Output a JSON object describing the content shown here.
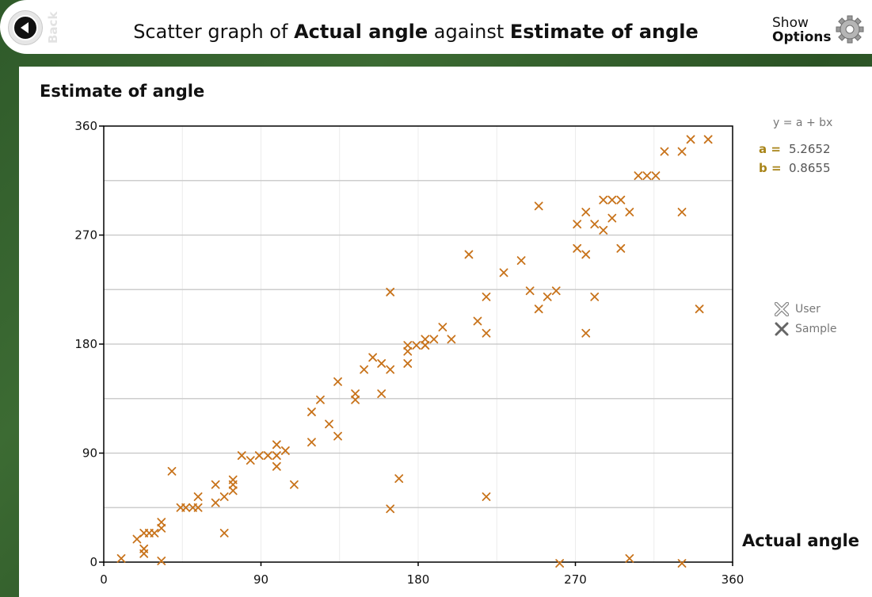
{
  "header": {
    "back_label": "Back",
    "title_prefix": "Scatter graph of ",
    "title_x": "Actual angle",
    "title_mid": " against ",
    "title_y": "Estimate of angle",
    "options_line1": "Show",
    "options_line2": "Options"
  },
  "equation": {
    "label": "y = a + bx",
    "a_label": "a =",
    "a_value": "5.2652",
    "b_label": "b =",
    "b_value": "0.8655"
  },
  "legend": {
    "user": "User",
    "sample": "Sample"
  },
  "colors": {
    "marker": "#c8731b",
    "grid": "#c9c9c9",
    "axis": "#000000"
  },
  "chart_data": {
    "type": "scatter",
    "title": "Scatter graph of Actual angle against Estimate of angle",
    "xlabel": "Actual angle",
    "ylabel": "Estimate of angle",
    "xlim": [
      0,
      360
    ],
    "ylim": [
      0,
      360
    ],
    "xticks": [
      "0",
      "90",
      "180",
      "270",
      "360"
    ],
    "yticks": [
      "0",
      "90",
      "180",
      "270",
      "360"
    ],
    "fit": {
      "a": 5.2652,
      "b": 0.8655
    },
    "series": [
      {
        "name": "Sample",
        "points": [
          [
            10,
            3
          ],
          [
            19,
            19
          ],
          [
            23,
            11
          ],
          [
            23,
            7
          ],
          [
            23,
            24
          ],
          [
            26,
            24
          ],
          [
            29,
            24
          ],
          [
            33,
            28
          ],
          [
            33,
            33
          ],
          [
            33,
            1
          ],
          [
            39,
            75
          ],
          [
            44,
            45
          ],
          [
            47,
            45
          ],
          [
            51,
            45
          ],
          [
            54,
            45
          ],
          [
            54,
            54
          ],
          [
            64,
            49
          ],
          [
            64,
            64
          ],
          [
            69,
            24
          ],
          [
            69,
            54
          ],
          [
            74,
            59
          ],
          [
            74,
            64
          ],
          [
            74,
            68
          ],
          [
            79,
            88
          ],
          [
            84,
            84
          ],
          [
            89,
            88
          ],
          [
            94,
            88
          ],
          [
            99,
            88
          ],
          [
            99,
            97
          ],
          [
            99,
            79
          ],
          [
            104,
            92
          ],
          [
            109,
            64
          ],
          [
            119,
            99
          ],
          [
            119,
            124
          ],
          [
            124,
            134
          ],
          [
            129,
            114
          ],
          [
            134,
            149
          ],
          [
            134,
            104
          ],
          [
            144,
            139
          ],
          [
            144,
            134
          ],
          [
            149,
            159
          ],
          [
            154,
            169
          ],
          [
            159,
            164
          ],
          [
            159,
            139
          ],
          [
            164,
            159
          ],
          [
            164,
            223
          ],
          [
            164,
            44
          ],
          [
            169,
            69
          ],
          [
            174,
            164
          ],
          [
            174,
            179
          ],
          [
            174,
            174
          ],
          [
            179,
            179
          ],
          [
            184,
            179
          ],
          [
            184,
            179
          ],
          [
            184,
            184
          ],
          [
            189,
            184
          ],
          [
            194,
            194
          ],
          [
            199,
            184
          ],
          [
            209,
            254
          ],
          [
            214,
            199
          ],
          [
            219,
            219
          ],
          [
            219,
            189
          ],
          [
            219,
            54
          ],
          [
            229,
            239
          ],
          [
            239,
            249
          ],
          [
            244,
            224
          ],
          [
            249,
            294
          ],
          [
            249,
            209
          ],
          [
            254,
            219
          ],
          [
            259,
            224
          ],
          [
            261,
            -1
          ],
          [
            271,
            259
          ],
          [
            271,
            279
          ],
          [
            276,
            289
          ],
          [
            276,
            254
          ],
          [
            276,
            189
          ],
          [
            281,
            219
          ],
          [
            281,
            279
          ],
          [
            286,
            274
          ],
          [
            286,
            299
          ],
          [
            291,
            299
          ],
          [
            291,
            284
          ],
          [
            296,
            299
          ],
          [
            296,
            259
          ],
          [
            301,
            289
          ],
          [
            301,
            3
          ],
          [
            306,
            319
          ],
          [
            311,
            319
          ],
          [
            316,
            319
          ],
          [
            321,
            339
          ],
          [
            331,
            339
          ],
          [
            331,
            289
          ],
          [
            331,
            -1
          ],
          [
            336,
            349
          ],
          [
            341,
            209
          ],
          [
            346,
            349
          ]
        ]
      }
    ]
  }
}
